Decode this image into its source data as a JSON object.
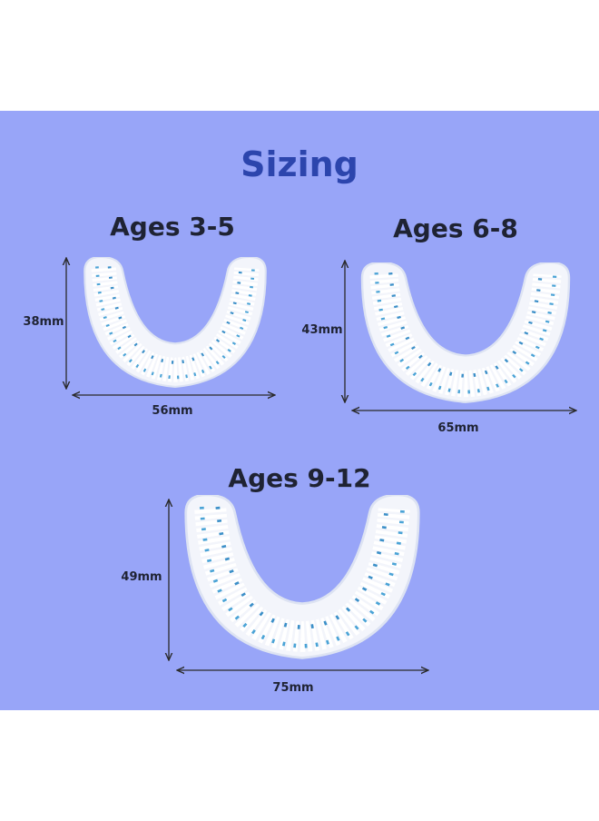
{
  "title": "Sizing",
  "sizes": [
    {
      "label": "Ages 3-5",
      "height": "38mm",
      "width": "56mm"
    },
    {
      "label": "Ages 6-8",
      "height": "43mm",
      "width": "65mm"
    },
    {
      "label": "Ages 9-12",
      "height": "49mm",
      "width": "75mm"
    }
  ]
}
